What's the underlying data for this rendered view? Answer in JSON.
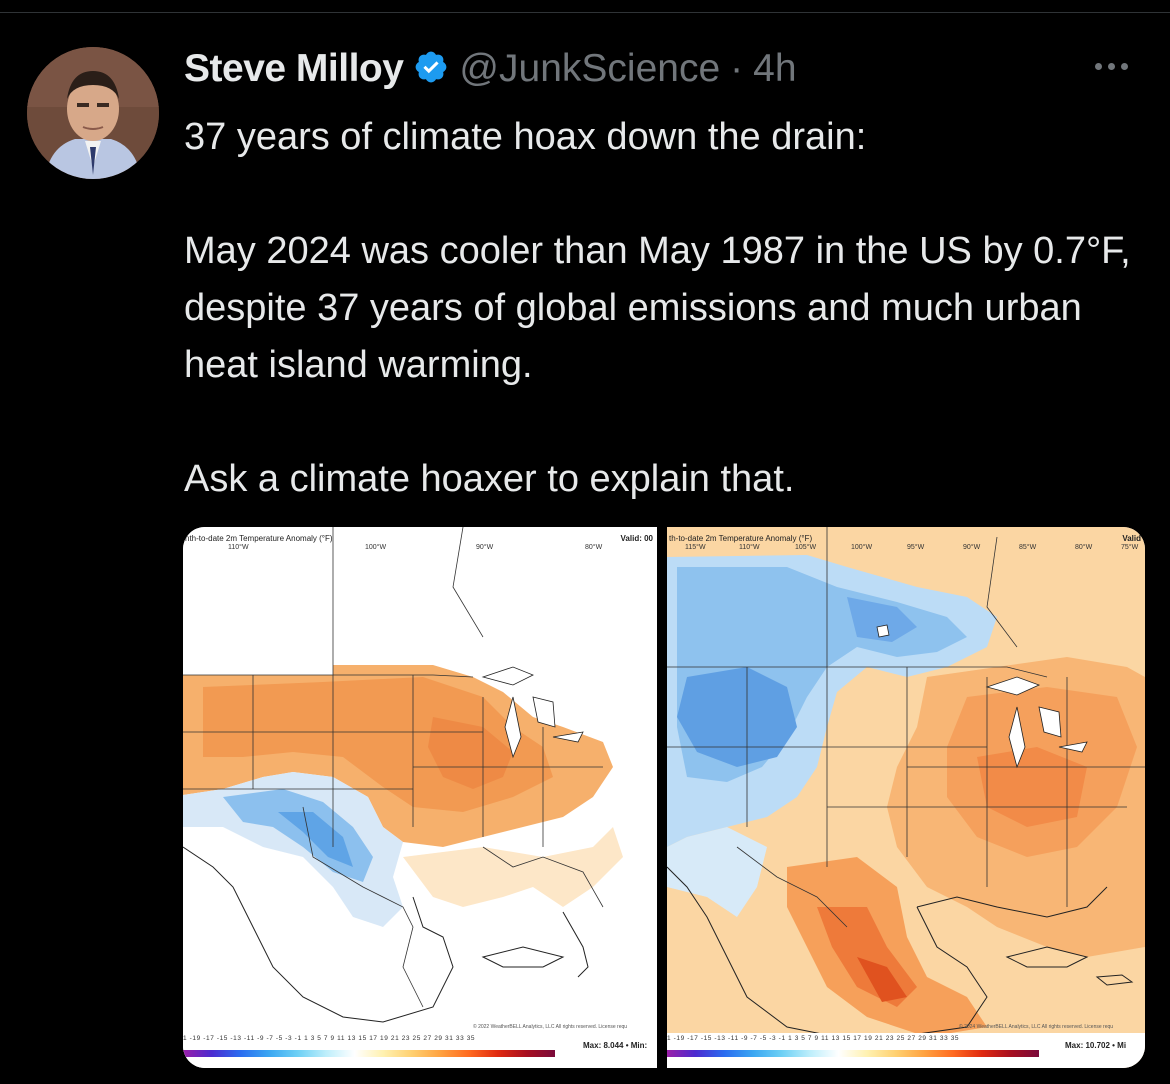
{
  "tweet": {
    "author_name": "Steve Milloy",
    "handle": "@JunkScience",
    "separator": "·",
    "time": "4h",
    "paragraphs": [
      "37 years of climate hoax down the drain:",
      "May 2024 was cooler than May 1987 in the US by 0.7°F, despite 37 years of global emissions and much urban heat island warming.",
      "Ask a climate hoaxer to explain that."
    ]
  },
  "icons": {
    "verified": "verified-badge-icon",
    "more": "more-options-icon"
  },
  "colors": {
    "background": "#000000",
    "text_primary": "#e7e9ea",
    "text_secondary": "#71767b",
    "verified_blue": "#1d9bf0"
  },
  "maps": [
    {
      "title": "nth-to-date 2m Temperature Anomaly (°F)",
      "valid": "Valid: 00",
      "lon_labels": [
        "110°W",
        "100°W",
        "90°W",
        "80°W"
      ],
      "copyright": "© 2022 WeatherBELL Analytics, LLC All rights reserved. License requ",
      "colorbar_ticks": "1 -19 -17 -15 -13 -11 -9 -7 -5 -3 -1 1 3 5 7 9 11 13 15 17 19 21 23 25 27 29 31 33 35",
      "max_label": "Max: 8.044 • Min:"
    },
    {
      "title": "th-to-date 2m Temperature Anomaly (°F)",
      "valid": "Valid",
      "lon_labels": [
        "115°W",
        "110°W",
        "105°W",
        "100°W",
        "95°W",
        "90°W",
        "85°W",
        "80°W",
        "75°W"
      ],
      "copyright": "© 2024 WeatherBELL Analytics, LLC All rights reserved. License requ",
      "colorbar_ticks": "1 -19 -17 -15 -13 -11 -9 -7 -5 -3 -1 1 3 5 7 9 11 13 15 17 19 21 23 25 27 29 31 33 35",
      "max_label": "Max: 10.702 • Mi"
    }
  ]
}
